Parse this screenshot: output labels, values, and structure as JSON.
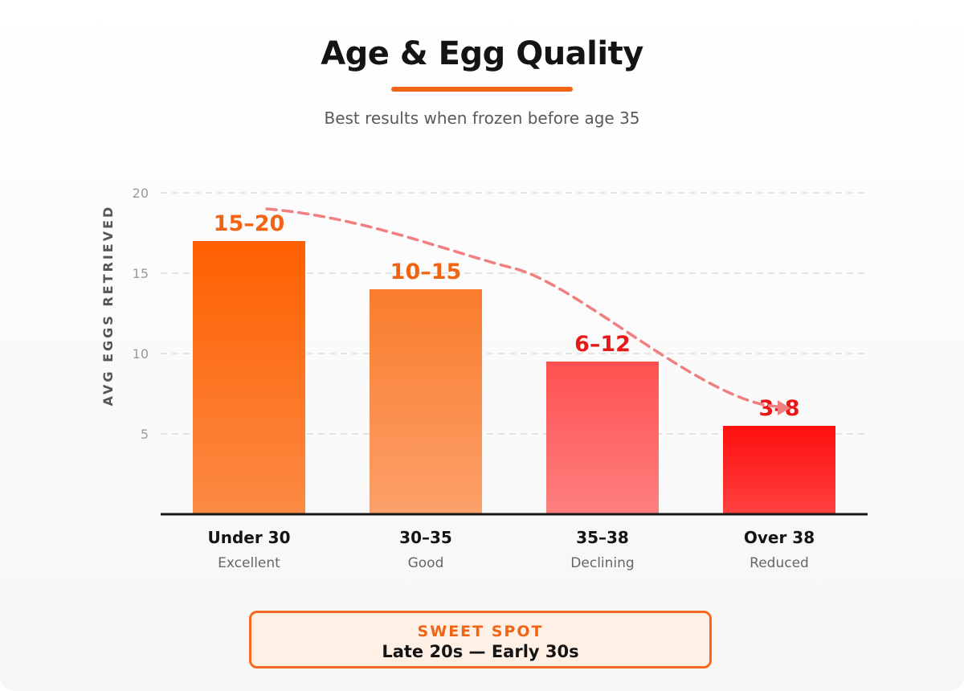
{
  "title": "Age & Egg Quality",
  "subtitle": "Best results when frozen before age 35",
  "colors": {
    "accent": "#f06414",
    "axis": "#141414",
    "grid": "#dddddd",
    "trend": "#f08080"
  },
  "chart_data": {
    "type": "bar",
    "title": "Age & Egg Quality",
    "subtitle": "Best results when frozen before age 35",
    "xlabel": "",
    "ylabel": "AVG EGGS RETRIEVED",
    "ylim": [
      0,
      20
    ],
    "yticks": [
      5,
      10,
      15,
      20
    ],
    "grid": true,
    "categories": [
      "Under 30",
      "30–35",
      "35–38",
      "Over 38"
    ],
    "category_notes": [
      "Excellent",
      "Good",
      "Declining",
      "Reduced"
    ],
    "values": [
      17,
      14,
      9.5,
      5.5
    ],
    "value_labels": [
      "15–20",
      "10–15",
      "6–12",
      "3–8"
    ],
    "bar_colors": [
      [
        "#ff5f00",
        "#fc8a44"
      ],
      [
        "#fa7c2c",
        "#fca06a"
      ],
      [
        "#ff5050",
        "#ff8080"
      ],
      [
        "#ff1010",
        "#ff4040"
      ]
    ],
    "label_colors": [
      "#f06414",
      "#f06414",
      "#e81818",
      "#e81818"
    ],
    "trend_line": {
      "style": "dashed",
      "points": [
        [
          0.1,
          19
        ],
        [
          1.5,
          15.3
        ],
        [
          3.0,
          6.7
        ]
      ]
    }
  },
  "sweet_spot": {
    "label": "SWEET SPOT",
    "value": "Late 20s — Early 30s"
  }
}
